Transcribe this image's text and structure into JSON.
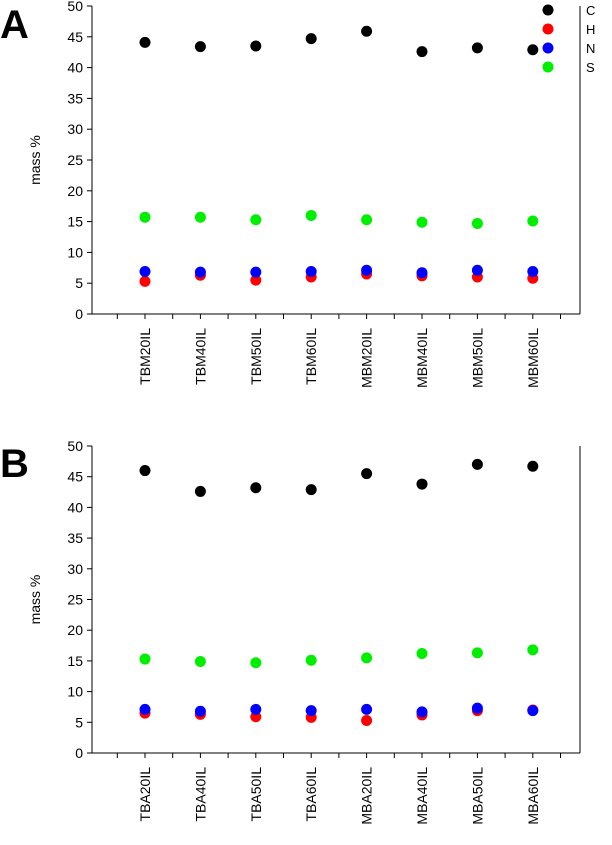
{
  "chart_data": [
    {
      "panel": "A",
      "type": "scatter",
      "ylabel": "mass %",
      "ylim": [
        0,
        50
      ],
      "yticks": [
        0,
        5,
        10,
        15,
        20,
        25,
        30,
        35,
        40,
        45,
        50
      ],
      "categories": [
        "TBM20IL",
        "TBM40IL",
        "TBM50IL",
        "TBM60IL",
        "MBM20IL",
        "MBM40IL",
        "MBM50IL",
        "MBM60IL"
      ],
      "series": [
        {
          "name": "C",
          "color": "#000000",
          "values": [
            44.1,
            43.4,
            43.5,
            44.7,
            45.9,
            42.6,
            43.2,
            42.9
          ]
        },
        {
          "name": "H",
          "color": "#ff0000",
          "values": [
            5.3,
            6.3,
            5.5,
            6.0,
            6.5,
            6.2,
            6.0,
            5.8
          ]
        },
        {
          "name": "N",
          "color": "#0000ff",
          "values": [
            6.9,
            6.8,
            6.8,
            6.9,
            7.1,
            6.7,
            7.1,
            6.9
          ]
        },
        {
          "name": "S",
          "color": "#00ee00",
          "values": [
            15.7,
            15.7,
            15.3,
            16.0,
            15.3,
            14.9,
            14.7,
            15.1
          ]
        }
      ],
      "legend": [
        {
          "label": "C",
          "color": "#000000"
        },
        {
          "label": "H",
          "color": "#ff0000"
        },
        {
          "label": "N",
          "color": "#0000ff"
        },
        {
          "label": "S",
          "color": "#00ee00"
        }
      ]
    },
    {
      "panel": "B",
      "type": "scatter",
      "ylabel": "mass %",
      "ylim": [
        0,
        50
      ],
      "yticks": [
        0,
        5,
        10,
        15,
        20,
        25,
        30,
        35,
        40,
        45,
        50
      ],
      "categories": [
        "TBA20IL",
        "TBA40IL",
        "TBA50IL",
        "TBA60IL",
        "MBA20IL",
        "MBA40IL",
        "MBA50IL",
        "MBA60IL"
      ],
      "series": [
        {
          "name": "C",
          "color": "#000000",
          "values": [
            46.0,
            42.6,
            43.2,
            42.9,
            45.5,
            43.8,
            47.0,
            46.7
          ]
        },
        {
          "name": "H",
          "color": "#ff0000",
          "values": [
            6.5,
            6.3,
            5.9,
            5.8,
            5.3,
            6.2,
            6.9,
            7.0
          ]
        },
        {
          "name": "N",
          "color": "#0000ff",
          "values": [
            7.1,
            6.8,
            7.1,
            6.9,
            7.1,
            6.7,
            7.3,
            6.9
          ]
        },
        {
          "name": "S",
          "color": "#00ee00",
          "values": [
            15.3,
            14.9,
            14.7,
            15.1,
            15.5,
            16.2,
            16.3,
            16.8
          ]
        }
      ]
    }
  ]
}
